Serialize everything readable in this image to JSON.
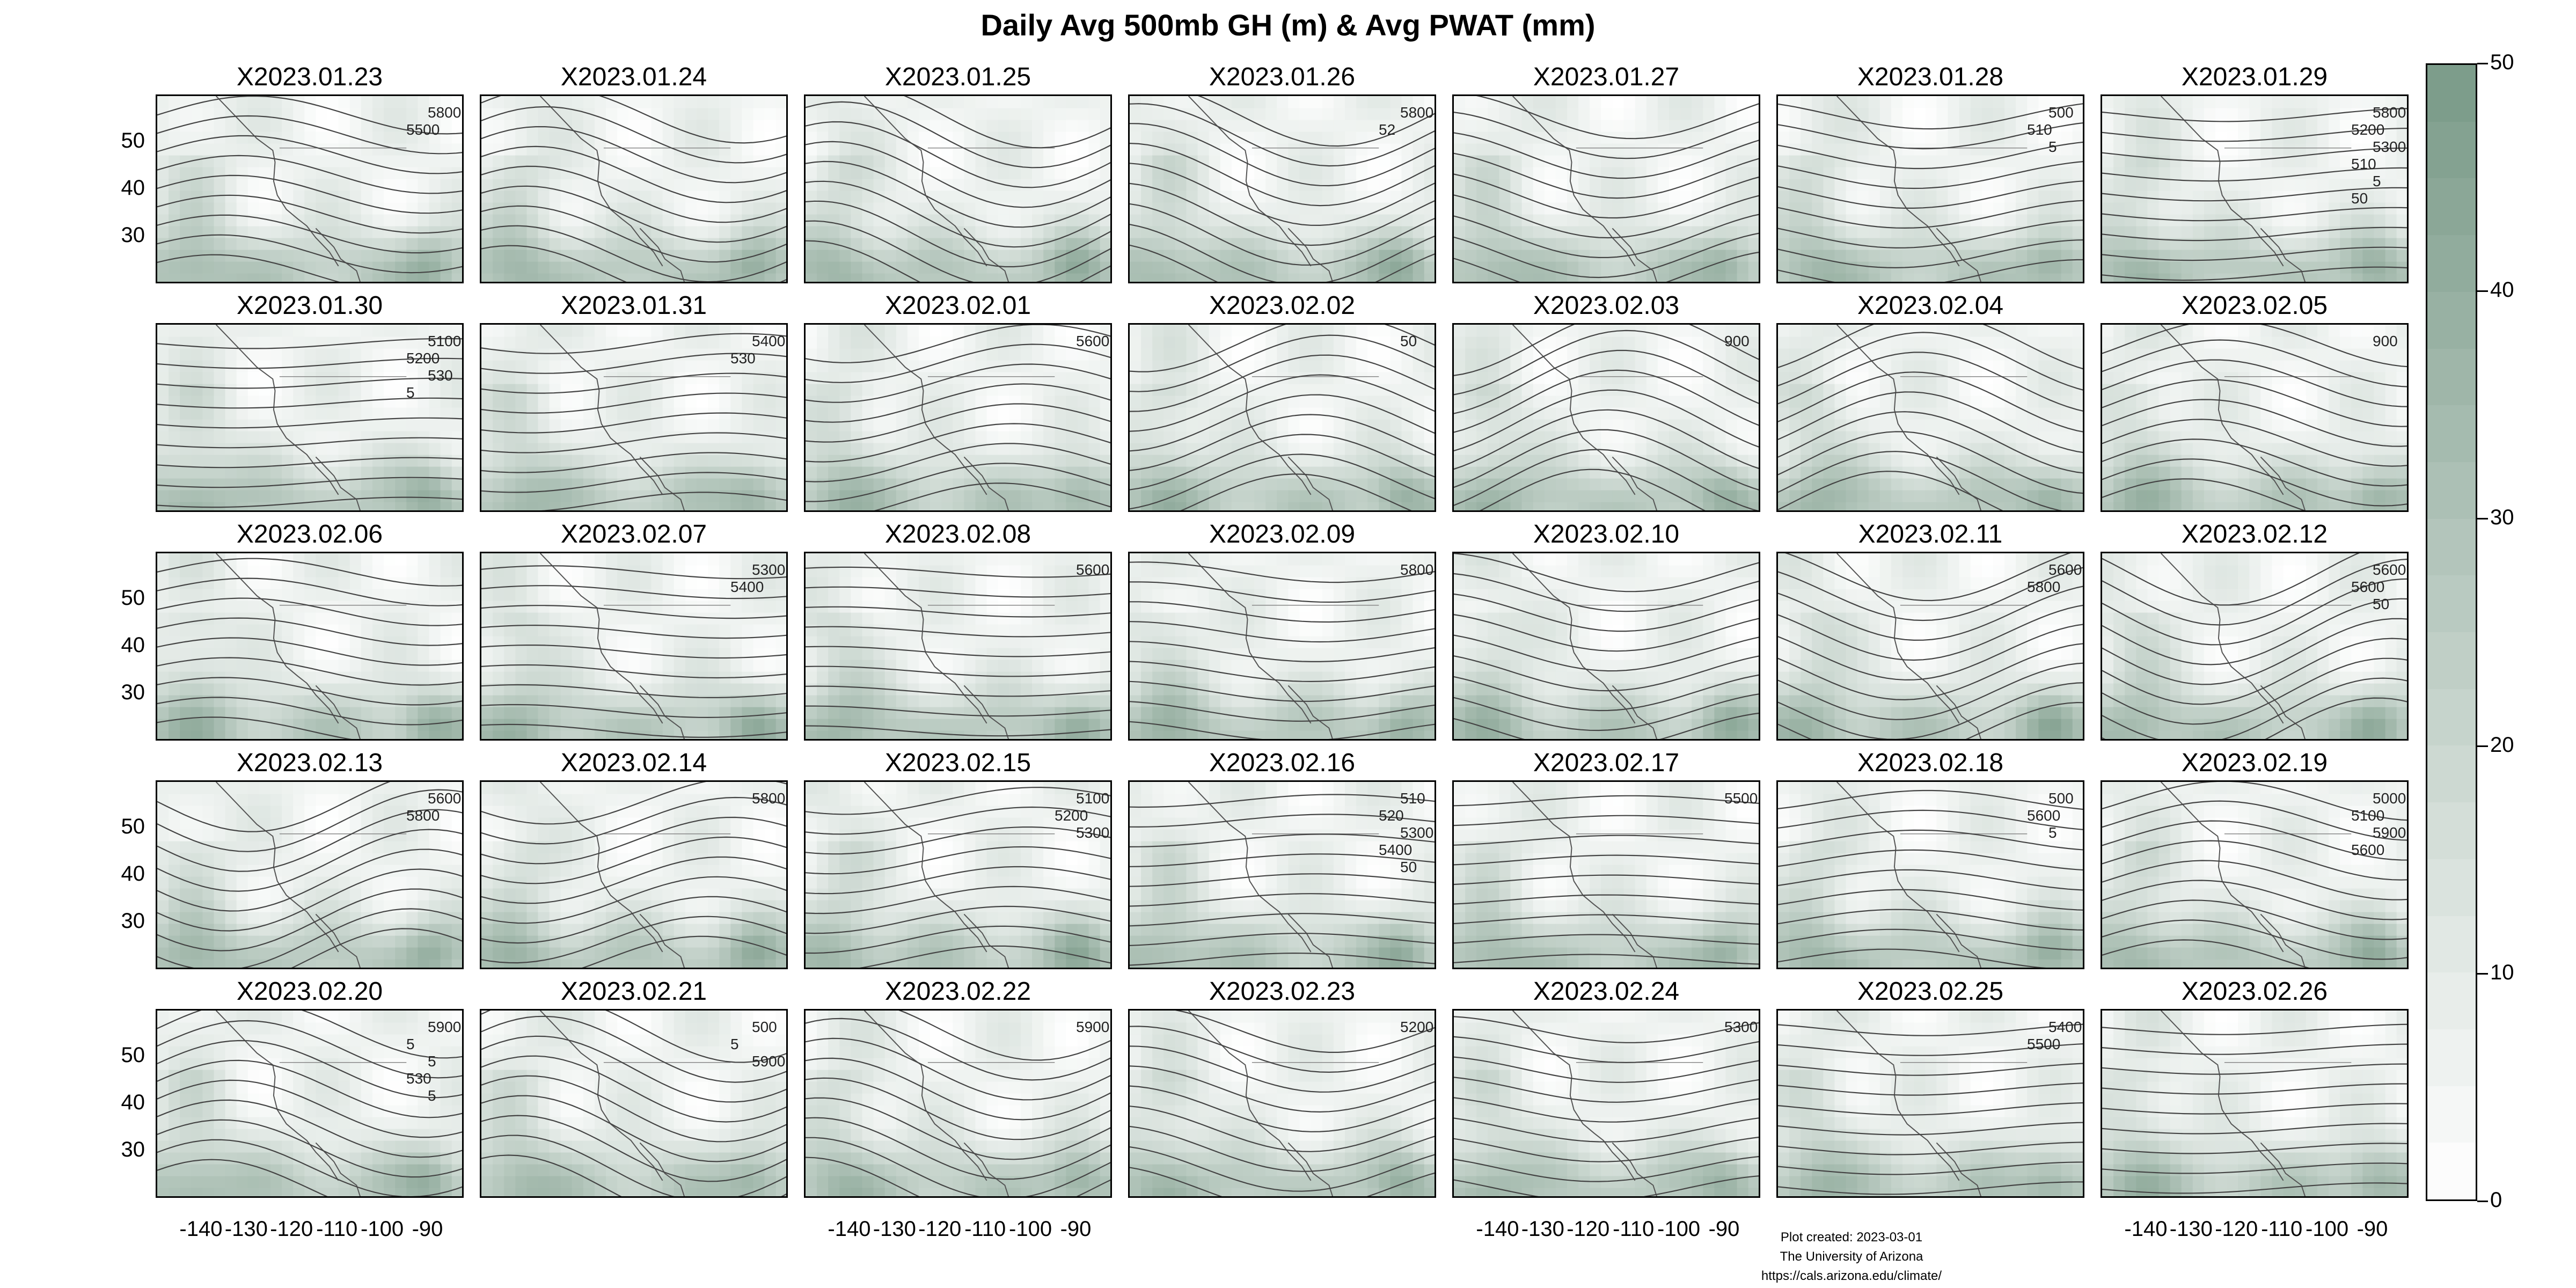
{
  "title": "Daily Avg 500mb GH (m) & Avg PWAT (mm)",
  "chart_data": {
    "type": "heatmap",
    "title": "Daily Avg 500mb GH (m) & Avg PWAT (mm)",
    "panel_layout": {
      "rows": 5,
      "cols": 7
    },
    "panels": [
      "X2023.01.23",
      "X2023.01.24",
      "X2023.01.25",
      "X2023.01.26",
      "X2023.01.27",
      "X2023.01.28",
      "X2023.01.29",
      "X2023.01.30",
      "X2023.01.31",
      "X2023.02.01",
      "X2023.02.02",
      "X2023.02.03",
      "X2023.02.04",
      "X2023.02.05",
      "X2023.02.06",
      "X2023.02.07",
      "X2023.02.08",
      "X2023.02.09",
      "X2023.02.10",
      "X2023.02.11",
      "X2023.02.12",
      "X2023.02.13",
      "X2023.02.14",
      "X2023.02.15",
      "X2023.02.16",
      "X2023.02.17",
      "X2023.02.18",
      "X2023.02.19",
      "X2023.02.20",
      "X2023.02.21",
      "X2023.02.22",
      "X2023.02.23",
      "X2023.02.24",
      "X2023.02.25",
      "X2023.02.26"
    ],
    "x_ticks": [
      "-140",
      "-130",
      "-120",
      "-110",
      "-100",
      "-90"
    ],
    "x_tick_values": [
      -140,
      -130,
      -120,
      -110,
      -100,
      -90
    ],
    "x_tick_columns": [
      0,
      2,
      4,
      6
    ],
    "y_ticks": [
      "50",
      "40",
      "30"
    ],
    "y_tick_values": [
      50,
      40,
      30
    ],
    "y_tick_rows": [
      0,
      2,
      3,
      4
    ],
    "xlim": [
      -150,
      -82
    ],
    "ylim": [
      20,
      60
    ],
    "colorbar": {
      "ticks": [
        "50",
        "40",
        "30",
        "20",
        "10",
        "0"
      ],
      "tick_values": [
        50,
        40,
        30,
        20,
        10,
        0
      ],
      "range": [
        0,
        50
      ],
      "levels": 20,
      "low_color": "#ffffff",
      "high_color": "#7a9a88"
    },
    "contour_labels": [
      {
        "panel": 0,
        "labels": [
          "5800",
          "5500"
        ]
      },
      {
        "panel": 3,
        "labels": [
          "5800",
          "52"
        ]
      },
      {
        "panel": 5,
        "labels": [
          "500",
          "510",
          "5"
        ]
      },
      {
        "panel": 6,
        "labels": [
          "5800",
          "5200",
          "5300",
          "510",
          "5",
          "50"
        ]
      },
      {
        "panel": 7,
        "labels": [
          "5100",
          "5200",
          "530",
          "5"
        ]
      },
      {
        "panel": 8,
        "labels": [
          "5400",
          "530"
        ]
      },
      {
        "panel": 9,
        "labels": [
          "5600"
        ]
      },
      {
        "panel": 10,
        "labels": [
          "50"
        ]
      },
      {
        "panel": 11,
        "labels": [
          "900"
        ]
      },
      {
        "panel": 13,
        "labels": [
          "900"
        ]
      },
      {
        "panel": 15,
        "labels": [
          "5300",
          "5400"
        ]
      },
      {
        "panel": 16,
        "labels": [
          "5600"
        ]
      },
      {
        "panel": 17,
        "labels": [
          "5800"
        ]
      },
      {
        "panel": 19,
        "labels": [
          "5600",
          "5800"
        ]
      },
      {
        "panel": 20,
        "labels": [
          "5600",
          "5600",
          "50"
        ]
      },
      {
        "panel": 21,
        "labels": [
          "5600",
          "5800"
        ]
      },
      {
        "panel": 22,
        "labels": [
          "5800"
        ]
      },
      {
        "panel": 23,
        "labels": [
          "5100",
          "5200",
          "5300"
        ]
      },
      {
        "panel": 24,
        "labels": [
          "510",
          "520",
          "5300",
          "5400",
          "50"
        ]
      },
      {
        "panel": 25,
        "labels": [
          "5500"
        ]
      },
      {
        "panel": 26,
        "labels": [
          "500",
          "5600",
          "5"
        ]
      },
      {
        "panel": 27,
        "labels": [
          "5000",
          "5100",
          "5900",
          "5600"
        ]
      },
      {
        "panel": 28,
        "labels": [
          "5900",
          "5",
          "5",
          "530",
          "5"
        ]
      },
      {
        "panel": 29,
        "labels": [
          "500",
          "5",
          "5900"
        ]
      },
      {
        "panel": 30,
        "labels": [
          "5900"
        ]
      },
      {
        "panel": 31,
        "labels": [
          "5200"
        ]
      },
      {
        "panel": 32,
        "labels": [
          "5300"
        ]
      },
      {
        "panel": 33,
        "labels": [
          "5400",
          "5500"
        ]
      }
    ]
  },
  "footer": {
    "line1": "Plot created: 2023-03-01",
    "line2": "The University of Arizona",
    "line3": "https://cals.arizona.edu/climate/"
  },
  "colors": {
    "contour": "#444444",
    "coast": "#555555",
    "frame": "#000000"
  }
}
